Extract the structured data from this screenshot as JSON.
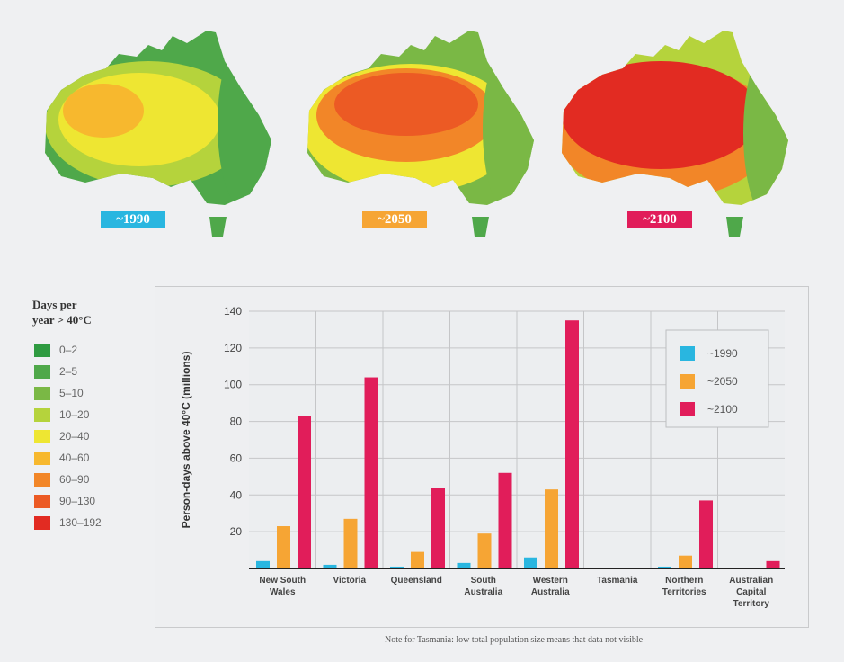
{
  "maps": [
    {
      "label": "~1990",
      "color": "#29b6e0"
    },
    {
      "label": "~2050",
      "color": "#f6a534"
    },
    {
      "label": "~2100",
      "color": "#e11d5a"
    }
  ],
  "legend": {
    "title_line1": "Days per",
    "title_line2": "year > 40°C",
    "items": [
      {
        "label": "0–2",
        "color": "#2f9b41"
      },
      {
        "label": "2–5",
        "color": "#4fa84a"
      },
      {
        "label": "5–10",
        "color": "#7ab845"
      },
      {
        "label": "10–20",
        "color": "#b5d33c"
      },
      {
        "label": "20–40",
        "color": "#eee632"
      },
      {
        "label": "40–60",
        "color": "#f7b82e"
      },
      {
        "label": "60–90",
        "color": "#f28628"
      },
      {
        "label": "90–130",
        "color": "#ec5a24"
      },
      {
        "label": "130–192",
        "color": "#e22b22"
      }
    ]
  },
  "chart_data": {
    "type": "bar",
    "ylabel": "Person-days above 40°C (millions)",
    "ylim": [
      0,
      140
    ],
    "yticks": [
      20,
      40,
      60,
      80,
      100,
      120,
      140
    ],
    "grid": true,
    "legend_position": "top-right",
    "categories": [
      [
        "New South",
        "Wales"
      ],
      [
        "Victoria"
      ],
      [
        "Queensland"
      ],
      [
        "South",
        "Australia"
      ],
      [
        "Western",
        "Australia"
      ],
      [
        "Tasmania"
      ],
      [
        "Northern",
        "Territories"
      ],
      [
        "Australian",
        "Capital",
        "Territory"
      ]
    ],
    "series": [
      {
        "name": "~1990",
        "color": "#29b6e0",
        "values": [
          4,
          2,
          1,
          3,
          6,
          0,
          1,
          0
        ]
      },
      {
        "name": "~2050",
        "color": "#f6a534",
        "values": [
          23,
          27,
          9,
          19,
          43,
          0,
          7,
          0
        ]
      },
      {
        "name": "~2100",
        "color": "#e11d5a",
        "values": [
          83,
          104,
          44,
          52,
          135,
          0,
          37,
          4
        ]
      }
    ]
  },
  "note": "Note for Tasmania: low total population size means that data not visible"
}
